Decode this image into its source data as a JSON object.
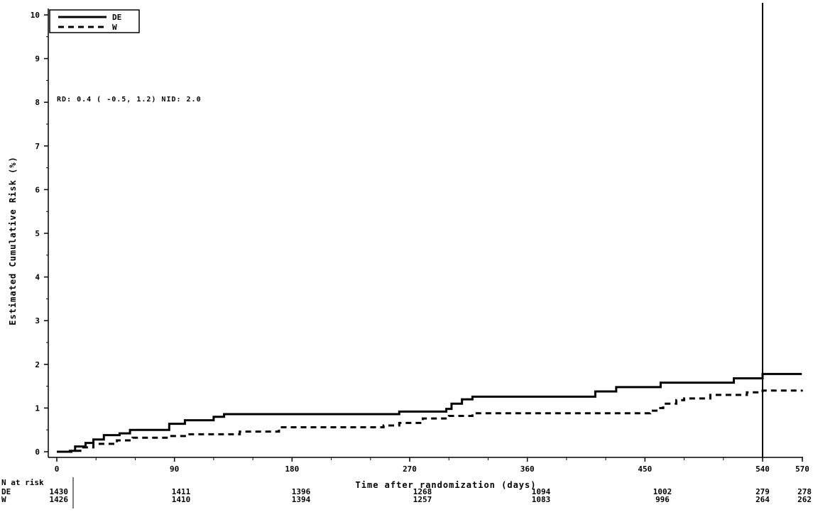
{
  "chart_data": {
    "type": "line",
    "step": true,
    "xlabel": "Time after randomization (days)",
    "ylabel": "Estimated Cumulative Risk (%)",
    "xlim": [
      0,
      570
    ],
    "ylim": [
      0,
      10
    ],
    "x_ticks": [
      0,
      90,
      180,
      270,
      360,
      450,
      540,
      570
    ],
    "y_ticks": [
      0,
      1,
      2,
      3,
      4,
      5,
      6,
      7,
      8,
      9,
      10
    ],
    "legend_position": "top-left",
    "annotation": "RD: 0.4 ( -0.5,   1.2)   NID: 2.0",
    "vertical_reference_line_x": 540,
    "series": [
      {
        "name": "DE",
        "style": "solid",
        "color": "#000000",
        "points": [
          [
            0,
            0.0
          ],
          [
            10,
            0.02
          ],
          [
            14,
            0.12
          ],
          [
            22,
            0.2
          ],
          [
            28,
            0.28
          ],
          [
            36,
            0.38
          ],
          [
            48,
            0.42
          ],
          [
            56,
            0.5
          ],
          [
            86,
            0.64
          ],
          [
            98,
            0.72
          ],
          [
            120,
            0.8
          ],
          [
            128,
            0.86
          ],
          [
            262,
            0.92
          ],
          [
            298,
            0.98
          ],
          [
            302,
            1.1
          ],
          [
            310,
            1.2
          ],
          [
            318,
            1.26
          ],
          [
            412,
            1.38
          ],
          [
            428,
            1.48
          ],
          [
            462,
            1.58
          ],
          [
            518,
            1.68
          ],
          [
            540,
            1.78
          ],
          [
            570,
            1.78
          ]
        ]
      },
      {
        "name": "W",
        "style": "dashed",
        "color": "#000000",
        "points": [
          [
            0,
            0.0
          ],
          [
            12,
            0.02
          ],
          [
            18,
            0.1
          ],
          [
            28,
            0.18
          ],
          [
            46,
            0.26
          ],
          [
            58,
            0.32
          ],
          [
            86,
            0.36
          ],
          [
            98,
            0.4
          ],
          [
            140,
            0.46
          ],
          [
            170,
            0.56
          ],
          [
            250,
            0.6
          ],
          [
            262,
            0.66
          ],
          [
            280,
            0.76
          ],
          [
            300,
            0.82
          ],
          [
            318,
            0.88
          ],
          [
            454,
            0.94
          ],
          [
            460,
            1.0
          ],
          [
            464,
            1.1
          ],
          [
            474,
            1.18
          ],
          [
            480,
            1.22
          ],
          [
            500,
            1.3
          ],
          [
            528,
            1.36
          ],
          [
            540,
            1.4
          ],
          [
            570,
            1.42
          ]
        ]
      }
    ],
    "risk_table": {
      "title": "N at risk",
      "columns": [
        0,
        90,
        180,
        270,
        360,
        450,
        540,
        570
      ],
      "rows": [
        {
          "label": "DE",
          "values": [
            "1430",
            "1411",
            "1396",
            "1268",
            "1094",
            "1002",
            "279",
            "278"
          ]
        },
        {
          "label": "W",
          "values": [
            "1426",
            "1410",
            "1394",
            "1257",
            "1083",
            "996",
            "264",
            "262"
          ]
        }
      ]
    }
  }
}
